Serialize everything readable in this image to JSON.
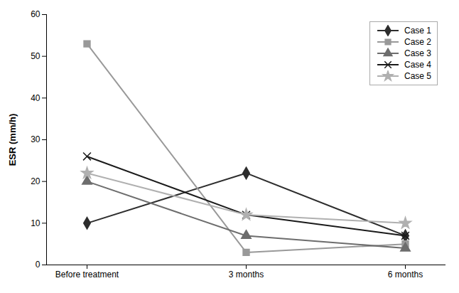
{
  "chart_data": {
    "type": "line",
    "ylabel": "ESR (mm/h)",
    "categories": [
      "Before treatment",
      "3 months",
      "6 months"
    ],
    "series": [
      {
        "name": "Case 1",
        "color": "#2d2d2d",
        "marker": "diamond",
        "values": [
          10,
          22,
          7
        ]
      },
      {
        "name": "Case 2",
        "color": "#999999",
        "marker": "square",
        "values": [
          53,
          3,
          5
        ]
      },
      {
        "name": "Case 3",
        "color": "#6d6d6d",
        "marker": "triangle",
        "values": [
          20,
          7,
          4
        ]
      },
      {
        "name": "Case 4",
        "color": "#1a1a1a",
        "marker": "x",
        "values": [
          26,
          12,
          7
        ]
      },
      {
        "name": "Case 5",
        "color": "#b0b0b0",
        "marker": "star",
        "values": [
          22,
          12,
          10
        ]
      }
    ],
    "ylim": [
      0,
      60
    ],
    "yticks": [
      0,
      10,
      20,
      30,
      40,
      50,
      60
    ],
    "grid": false,
    "legend": "upper right"
  }
}
